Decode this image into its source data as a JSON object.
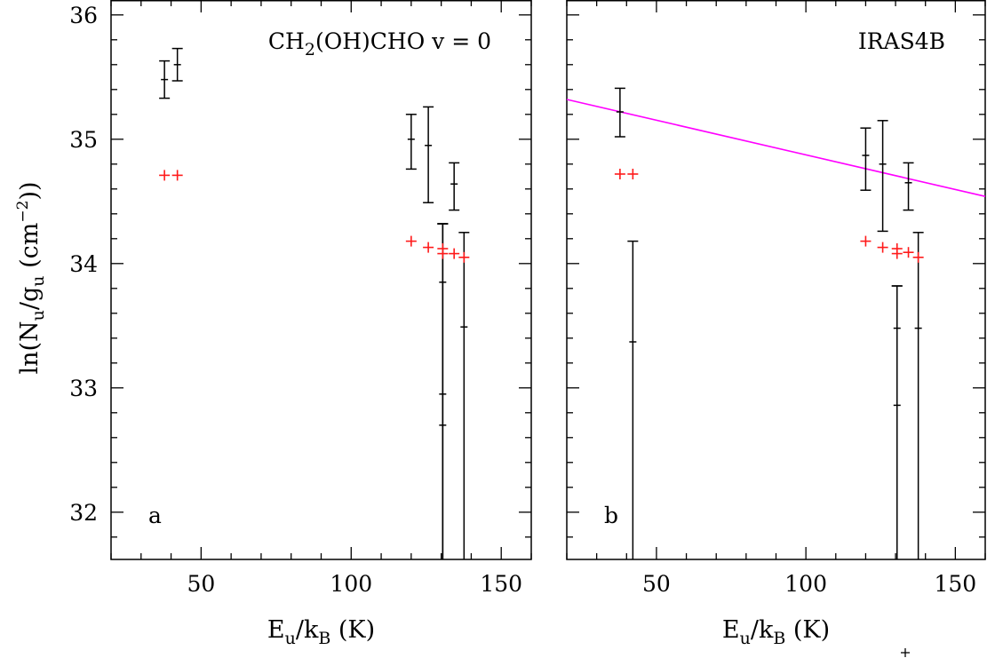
{
  "chart_data": [
    {
      "type": "scatter",
      "panel_label": "a",
      "annotation": {
        "species": "CH",
        "sub": "2",
        "rest": "(OH)CHO v = 0"
      },
      "xlim": [
        20,
        160
      ],
      "ylim": [
        31.62,
        36.12
      ],
      "xticks": [
        50,
        100,
        150
      ],
      "yticks": [
        32,
        33,
        34,
        35,
        36
      ],
      "xlabel": {
        "main": "E",
        "sub1": "u",
        "mid": "/k",
        "sub2": "B",
        "tail": " (K)"
      },
      "ylabel": {
        "main": "ln(N",
        "sub1": "u",
        "mid": "/g",
        "sub2": "u",
        "mid2": " (cm",
        "sup": "−2",
        "tail": "))"
      },
      "observed": [
        {
          "x": 37.8,
          "y": 35.48,
          "ylo": 35.33,
          "yhi": 35.63
        },
        {
          "x": 42.1,
          "y": 35.6,
          "ylo": 35.47,
          "yhi": 35.73
        },
        {
          "x": 120.0,
          "y": 35.0,
          "ylo": 34.76,
          "yhi": 35.2
        },
        {
          "x": 125.7,
          "y": 34.95,
          "ylo": 34.49,
          "yhi": 35.26
        },
        {
          "x": 130.5,
          "y": 33.85,
          "ylo": 31.62,
          "yhi": 34.32
        },
        {
          "x": 130.5,
          "y": 32.95,
          "ylo": 31.62,
          "yhi": 34.32
        },
        {
          "x": 130.5,
          "y": 32.7,
          "ylo": 31.62,
          "yhi": 34.32
        },
        {
          "x": 134.3,
          "y": 34.64,
          "ylo": 34.43,
          "yhi": 34.81
        },
        {
          "x": 137.6,
          "y": 33.49,
          "ylo": 31.62,
          "yhi": 34.25
        }
      ],
      "model": [
        {
          "x": 37.8,
          "y": 34.71
        },
        {
          "x": 42.1,
          "y": 34.71
        },
        {
          "x": 120.0,
          "y": 34.18
        },
        {
          "x": 125.7,
          "y": 34.13
        },
        {
          "x": 130.5,
          "y": 34.12
        },
        {
          "x": 130.5,
          "y": 34.08
        },
        {
          "x": 134.3,
          "y": 34.08
        },
        {
          "x": 137.6,
          "y": 34.05
        }
      ],
      "fit_line": null
    },
    {
      "type": "scatter",
      "panel_label": "b",
      "annotation": {
        "species": "IRAS4B",
        "sub": "",
        "rest": ""
      },
      "xlim": [
        20,
        160
      ],
      "ylim": [
        31.62,
        36.12
      ],
      "xticks": [
        50,
        100,
        150
      ],
      "yticks": [
        32,
        33,
        34,
        35,
        36
      ],
      "xlabel": {
        "main": "E",
        "sub1": "u",
        "mid": "/k",
        "sub2": "B",
        "tail": " (K)"
      },
      "ylabel": null,
      "observed": [
        {
          "x": 37.8,
          "y": 35.22,
          "ylo": 35.02,
          "yhi": 35.41
        },
        {
          "x": 42.1,
          "y": 33.37,
          "ylo": 31.62,
          "yhi": 34.18
        },
        {
          "x": 120.0,
          "y": 34.87,
          "ylo": 34.59,
          "yhi": 35.09
        },
        {
          "x": 125.7,
          "y": 34.8,
          "ylo": 34.26,
          "yhi": 35.15
        },
        {
          "x": 130.5,
          "y": 33.48,
          "ylo": 31.62,
          "yhi": 33.82
        },
        {
          "x": 130.5,
          "y": 32.86,
          "ylo": 31.62,
          "yhi": 33.82
        },
        {
          "x": 134.3,
          "y": 34.65,
          "ylo": 34.43,
          "yhi": 34.81
        },
        {
          "x": 137.6,
          "y": 33.48,
          "ylo": 31.62,
          "yhi": 34.25
        }
      ],
      "model": [
        {
          "x": 37.8,
          "y": 34.72
        },
        {
          "x": 42.1,
          "y": 34.72
        },
        {
          "x": 120.0,
          "y": 34.18
        },
        {
          "x": 125.7,
          "y": 34.13
        },
        {
          "x": 130.5,
          "y": 34.12
        },
        {
          "x": 130.5,
          "y": 34.08
        },
        {
          "x": 134.3,
          "y": 34.09
        },
        {
          "x": 137.6,
          "y": 34.05
        }
      ],
      "fit_line": {
        "x": [
          20,
          160
        ],
        "y": [
          35.32,
          34.54
        ],
        "color": "#ff00ff"
      }
    }
  ],
  "colors": {
    "observed": "#000000",
    "model": "#ff1a1a",
    "fit": "#ff00ff"
  }
}
